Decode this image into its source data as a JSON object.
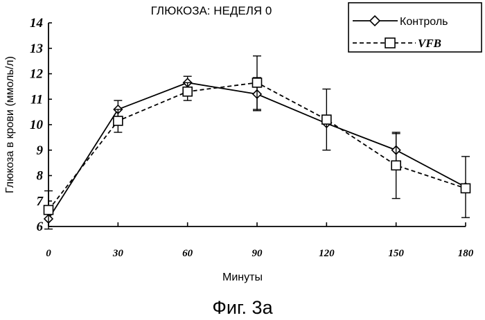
{
  "chart_data": {
    "type": "line",
    "title": "ГЛЮКОЗА: НЕДЕЛЯ 0",
    "xlabel": "Минуты",
    "ylabel": "Глюкоза в крови (ммоль/л)",
    "x": [
      0,
      30,
      60,
      90,
      120,
      150,
      180
    ],
    "xticks": [
      "0",
      "30",
      "60",
      "90",
      "120",
      "150",
      "180"
    ],
    "yticks": [
      "6",
      "7",
      "8",
      "9",
      "10",
      "11",
      "12",
      "13",
      "14"
    ],
    "ylim": [
      6,
      14
    ],
    "grid": false,
    "legend_position": "top-right",
    "series": [
      {
        "name": "Контроль",
        "marker": "diamond",
        "line": "solid",
        "values": [
          6.3,
          10.6,
          11.65,
          11.2,
          10.05,
          9.0,
          7.55
        ],
        "error": [
          null,
          0.35,
          0.25,
          0.65,
          null,
          0.65,
          1.2
        ]
      },
      {
        "name": "VFB",
        "marker": "square",
        "line": "dashed",
        "values": [
          6.65,
          10.15,
          11.3,
          11.65,
          10.2,
          8.4,
          7.5
        ],
        "error": [
          0.75,
          0.45,
          0.35,
          1.05,
          1.2,
          1.3,
          null
        ]
      }
    ],
    "caption": "Фиг. 3а"
  }
}
